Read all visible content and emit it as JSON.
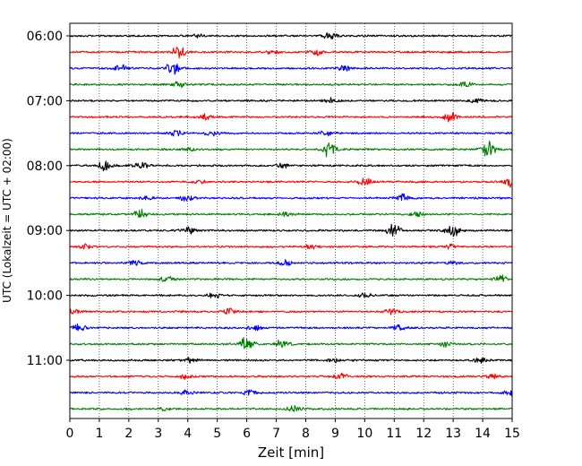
{
  "chart_data": {
    "type": "line",
    "title": "",
    "xlabel": "Zeit  [min]",
    "ylabel": "UTC (Lokalzeit = UTC + 02:00)",
    "xlim": [
      0,
      15
    ],
    "x_ticks": [
      "0",
      "1",
      "2",
      "3",
      "4",
      "5",
      "6",
      "7",
      "8",
      "9",
      "10",
      "11",
      "12",
      "13",
      "14",
      "15"
    ],
    "y_ticks": [
      "06:00",
      "07:00",
      "08:00",
      "09:00",
      "10:00",
      "11:00"
    ],
    "ylim": [
      "05:45",
      "12:00"
    ],
    "row_interval_minutes": 15,
    "grid": {
      "x": true,
      "y": false,
      "style": "dotted"
    },
    "series_colors": [
      "#000000",
      "#ff0000",
      "#0000ff",
      "#008000"
    ],
    "rows": [
      {
        "time": "06:00",
        "color": "#000000",
        "events": [
          {
            "t": 8.85,
            "amp": 0.5
          },
          {
            "t": 4.3,
            "amp": 0.2
          }
        ]
      },
      {
        "time": "06:15",
        "color": "#ff0000",
        "events": [
          {
            "t": 3.7,
            "amp": 0.7
          },
          {
            "t": 8.4,
            "amp": 0.4
          },
          {
            "t": 6.9,
            "amp": 0.2
          }
        ]
      },
      {
        "time": "06:30",
        "color": "#0000ff",
        "events": [
          {
            "t": 3.5,
            "amp": 0.9
          },
          {
            "t": 1.7,
            "amp": 0.4
          },
          {
            "t": 9.3,
            "amp": 0.3
          }
        ]
      },
      {
        "time": "06:45",
        "color": "#008000",
        "events": [
          {
            "t": 3.7,
            "amp": 0.3
          },
          {
            "t": 13.4,
            "amp": 0.3
          }
        ]
      },
      {
        "time": "07:00",
        "color": "#000000",
        "events": [
          {
            "t": 8.8,
            "amp": 0.4
          },
          {
            "t": 13.8,
            "amp": 0.2
          }
        ]
      },
      {
        "time": "07:15",
        "color": "#ff0000",
        "events": [
          {
            "t": 4.6,
            "amp": 0.3
          },
          {
            "t": 12.9,
            "amp": 0.6
          }
        ]
      },
      {
        "time": "07:30",
        "color": "#0000ff",
        "events": [
          {
            "t": 3.6,
            "amp": 0.4
          },
          {
            "t": 4.8,
            "amp": 0.3
          },
          {
            "t": 8.7,
            "amp": 0.3
          }
        ]
      },
      {
        "time": "07:45",
        "color": "#008000",
        "events": [
          {
            "t": 8.8,
            "amp": 0.9
          },
          {
            "t": 14.2,
            "amp": 0.9
          },
          {
            "t": 4.0,
            "amp": 0.2
          }
        ]
      },
      {
        "time": "08:00",
        "color": "#000000",
        "events": [
          {
            "t": 1.2,
            "amp": 0.6
          },
          {
            "t": 2.4,
            "amp": 0.5
          },
          {
            "t": 7.2,
            "amp": 0.3
          }
        ]
      },
      {
        "time": "08:15",
        "color": "#ff0000",
        "events": [
          {
            "t": 10.0,
            "amp": 0.5
          },
          {
            "t": 14.9,
            "amp": 0.5
          },
          {
            "t": 4.4,
            "amp": 0.2
          }
        ]
      },
      {
        "time": "08:30",
        "color": "#0000ff",
        "events": [
          {
            "t": 4.0,
            "amp": 0.4
          },
          {
            "t": 11.3,
            "amp": 0.4
          },
          {
            "t": 2.6,
            "amp": 0.2
          }
        ]
      },
      {
        "time": "08:45",
        "color": "#008000",
        "events": [
          {
            "t": 2.4,
            "amp": 0.5
          },
          {
            "t": 7.3,
            "amp": 0.3
          },
          {
            "t": 11.8,
            "amp": 0.3
          }
        ]
      },
      {
        "time": "09:00",
        "color": "#000000",
        "events": [
          {
            "t": 11.0,
            "amp": 0.8
          },
          {
            "t": 13.0,
            "amp": 0.8
          },
          {
            "t": 4.0,
            "amp": 0.4
          }
        ]
      },
      {
        "time": "09:15",
        "color": "#ff0000",
        "events": [
          {
            "t": 0.5,
            "amp": 0.3
          },
          {
            "t": 8.2,
            "amp": 0.3
          },
          {
            "t": 12.9,
            "amp": 0.3
          }
        ]
      },
      {
        "time": "09:30",
        "color": "#0000ff",
        "events": [
          {
            "t": 2.2,
            "amp": 0.3
          },
          {
            "t": 7.3,
            "amp": 0.3
          },
          {
            "t": 13.0,
            "amp": 0.2
          }
        ]
      },
      {
        "time": "09:45",
        "color": "#008000",
        "events": [
          {
            "t": 3.3,
            "amp": 0.4
          },
          {
            "t": 14.6,
            "amp": 0.4
          }
        ]
      },
      {
        "time": "10:00",
        "color": "#000000",
        "events": [
          {
            "t": 4.9,
            "amp": 0.3
          },
          {
            "t": 10.0,
            "amp": 0.3
          }
        ]
      },
      {
        "time": "10:15",
        "color": "#ff0000",
        "events": [
          {
            "t": 0.1,
            "amp": 0.4
          },
          {
            "t": 5.4,
            "amp": 0.4
          },
          {
            "t": 10.9,
            "amp": 0.3
          }
        ]
      },
      {
        "time": "10:30",
        "color": "#0000ff",
        "events": [
          {
            "t": 0.3,
            "amp": 0.4
          },
          {
            "t": 6.3,
            "amp": 0.3
          },
          {
            "t": 11.2,
            "amp": 0.3
          }
        ]
      },
      {
        "time": "10:45",
        "color": "#008000",
        "events": [
          {
            "t": 6.0,
            "amp": 0.9
          },
          {
            "t": 7.2,
            "amp": 0.5
          },
          {
            "t": 12.7,
            "amp": 0.3
          }
        ]
      },
      {
        "time": "11:00",
        "color": "#000000",
        "events": [
          {
            "t": 4.1,
            "amp": 0.3
          },
          {
            "t": 13.9,
            "amp": 0.3
          },
          {
            "t": 9.0,
            "amp": 0.2
          }
        ]
      },
      {
        "time": "11:15",
        "color": "#ff0000",
        "events": [
          {
            "t": 3.9,
            "amp": 0.3
          },
          {
            "t": 9.2,
            "amp": 0.4
          },
          {
            "t": 14.3,
            "amp": 0.2
          }
        ]
      },
      {
        "time": "11:30",
        "color": "#0000ff",
        "events": [
          {
            "t": 4.0,
            "amp": 0.3
          },
          {
            "t": 6.1,
            "amp": 0.3
          },
          {
            "t": 14.9,
            "amp": 0.3
          }
        ]
      },
      {
        "time": "11:45",
        "color": "#008000",
        "events": [
          {
            "t": 7.6,
            "amp": 0.4
          },
          {
            "t": 3.2,
            "amp": 0.2
          }
        ]
      }
    ]
  }
}
